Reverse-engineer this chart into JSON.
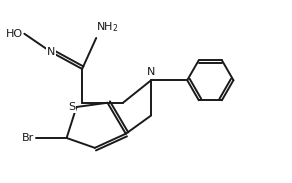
{
  "bg_color": "#ffffff",
  "line_color": "#1a1a1a",
  "lw": 1.4,
  "text_color": "#1a1a1a",
  "fs": 8.0,
  "xlim": [
    0,
    10
  ],
  "ylim": [
    0,
    6.1
  ]
}
